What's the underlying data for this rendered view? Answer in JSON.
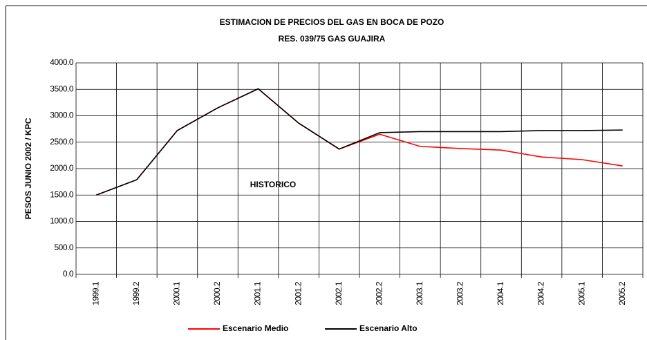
{
  "chart_data": {
    "type": "line",
    "title": "ESTIMACION DE PRECIOS DEL GAS EN BOCA DE POZO",
    "subtitle": "RES. 039/75 GAS GUAJIRA",
    "y_label": "PESOS JUNIO 2002 / KPC",
    "annotation": "HISTORICO",
    "categories": [
      "1999.1",
      "1999.2",
      "2000.1",
      "2000.2",
      "2001.1",
      "2001.2",
      "2002.1",
      "2002.2",
      "2003.1",
      "2003.2",
      "2004.1",
      "2004.2",
      "2005.1",
      "2005.2"
    ],
    "series": [
      {
        "name": "Escenario Medio",
        "color": "#ff0000",
        "values": [
          1500,
          1790,
          2720,
          3150,
          3510,
          2860,
          2370,
          2650,
          2420,
          2380,
          2350,
          2220,
          2170,
          2050
        ]
      },
      {
        "name": "Escenario Alto",
        "color": "#000000",
        "values": [
          1500,
          1790,
          2720,
          3150,
          3510,
          2860,
          2370,
          2680,
          2700,
          2700,
          2700,
          2720,
          2720,
          2730
        ]
      }
    ],
    "ylim": [
      0,
      4000
    ],
    "yticks": [
      {
        "value": 0,
        "label": "0.0"
      },
      {
        "value": 500,
        "label": "500.0"
      },
      {
        "value": 1000,
        "label": "1000.0"
      },
      {
        "value": 1500,
        "label": "1500.0"
      },
      {
        "value": 2000,
        "label": "2000.0"
      },
      {
        "value": 2500,
        "label": "2500.0"
      },
      {
        "value": 3000,
        "label": "3000.0"
      },
      {
        "value": 3500,
        "label": "3500.0"
      },
      {
        "value": 4000,
        "label": "4000.0"
      }
    ],
    "grid": true,
    "legend": "bottom"
  }
}
